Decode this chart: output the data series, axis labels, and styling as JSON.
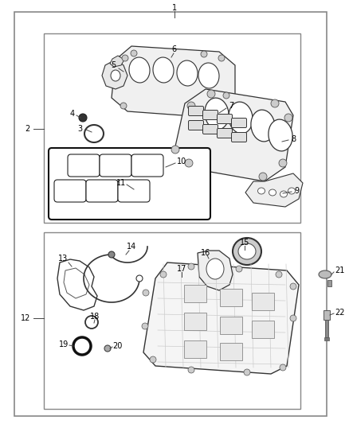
{
  "fig_width": 4.38,
  "fig_height": 5.33,
  "dpi": 100,
  "bg_color": "#ffffff",
  "line_color": "#444444",
  "text_color": "#000000",
  "font_size": 7.0
}
